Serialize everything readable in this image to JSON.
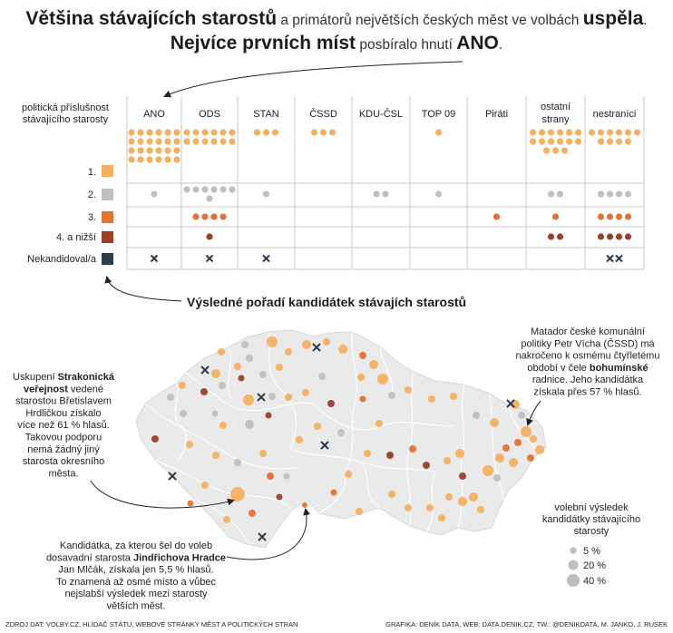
{
  "headline": {
    "line1": {
      "b1": "Většina stávajících starostů",
      "t1": " a primátorů největších českých měst ve volbách ",
      "b2": "uspěla",
      "t2": "."
    },
    "line2": {
      "b1": "Nejvíce prvních míst",
      "t1": " posbíralo hnutí ",
      "b2": "ANO",
      "t2": "."
    }
  },
  "colors": {
    "rank1": "#f4b062",
    "rank2": "#c0c0c0",
    "rank3": "#e27335",
    "rank4": "#99402a",
    "none": "#2e3d4c",
    "map_fill": "#eaeaea",
    "map_line": "#ffffff",
    "grid": "#c8c8c8"
  },
  "chart_data": [
    {
      "type": "table",
      "corner_label": [
        "politická příslušnost",
        "stávajícího starosty"
      ],
      "columns": [
        [
          "ANO"
        ],
        [
          "ODS"
        ],
        [
          "STAN"
        ],
        [
          "ČSSD"
        ],
        [
          "KDU-ČSL"
        ],
        [
          "TOP 09"
        ],
        [
          "Piráti"
        ],
        [
          "ostatní",
          "strany"
        ],
        [
          "nestraníci"
        ]
      ],
      "rows": [
        {
          "label": "1.",
          "key": "rank1",
          "counts": [
            24,
            12,
            3,
            3,
            0,
            1,
            0,
            15,
            10
          ]
        },
        {
          "label": "2.",
          "key": "rank2",
          "counts": [
            1,
            7,
            1,
            0,
            2,
            1,
            0,
            2,
            4
          ]
        },
        {
          "label": "3.",
          "key": "rank3",
          "counts": [
            0,
            4,
            0,
            0,
            0,
            0,
            1,
            1,
            4
          ]
        },
        {
          "label": "4. a nižší",
          "key": "rank4",
          "counts": [
            0,
            1,
            0,
            0,
            0,
            0,
            0,
            2,
            4
          ]
        },
        {
          "label": "Nekandidoval/a",
          "key": "none",
          "counts": [
            1,
            1,
            1,
            0,
            0,
            0,
            0,
            0,
            2
          ]
        }
      ],
      "subtitle": "Výsledné pořadí kandidátek stávajích starostů"
    },
    {
      "type": "scatter",
      "map": "Česká republika",
      "legend": {
        "title": [
          "volební výsledek",
          "kandidátky stávajícího",
          "starosty"
        ],
        "items": [
          {
            "label": "5 %",
            "value": 5
          },
          {
            "label": "20 %",
            "value": 20
          },
          {
            "label": "40 %",
            "value": 40
          }
        ]
      }
    }
  ],
  "annotations": {
    "strakonice": [
      [
        {
          "t": "Uskupení "
        },
        {
          "t": "Strakonická",
          "b": true
        }
      ],
      [
        {
          "t": "veřejnost",
          "b": true
        },
        {
          "t": " vedené"
        }
      ],
      [
        {
          "t": "starostou Břetislavem"
        }
      ],
      [
        {
          "t": "Hrdličkou získalo"
        }
      ],
      [
        {
          "t": "více než 61 % hlasů."
        }
      ],
      [
        {
          "t": "Takovou podporu"
        }
      ],
      [
        {
          "t": "nemá žádný jiný"
        }
      ],
      [
        {
          "t": "starosta okresního"
        }
      ],
      [
        {
          "t": "města."
        }
      ]
    ],
    "bohumin": [
      [
        {
          "t": "Matador české komunální"
        }
      ],
      [
        {
          "t": "politiky Petr Vícha (ČSSD) má"
        }
      ],
      [
        {
          "t": "nakročeno k osmému čtyřletému"
        }
      ],
      [
        {
          "t": "období v čele "
        },
        {
          "t": "bohumínské",
          "b": true
        }
      ],
      [
        {
          "t": "radnice. Jeho kandidátka"
        }
      ],
      [
        {
          "t": "získala přes 57 % hlasů."
        }
      ]
    ],
    "jhradec": [
      [
        {
          "t": "Kandidátka, za kterou šel do voleb"
        }
      ],
      [
        {
          "t": "dosavadní starosta "
        },
        {
          "t": "Jindřichova Hradce",
          "b": true
        }
      ],
      [
        {
          "t": "Jan Mlčák, získala jen 5,5 % hlasů."
        }
      ],
      [
        {
          "t": "To znamená až osmé místo a vůbec"
        }
      ],
      [
        {
          "t": "nejslabší výsledek mezi starosty"
        }
      ],
      [
        {
          "t": "větších měst."
        }
      ]
    ]
  },
  "footer": {
    "source": "ZDROJ DAT: VOLBY.CZ, HLÍDAČ STÁTU, WEBOVÉ STRÁNKY MĚST A POLITICKÝCH STRAN",
    "credit": "GRAFIKA: DENÍK DATA, WEB: DATA.DENIK.CZ, TW.: @DENIKDATA, M. JANKO, J. RUSEK"
  }
}
